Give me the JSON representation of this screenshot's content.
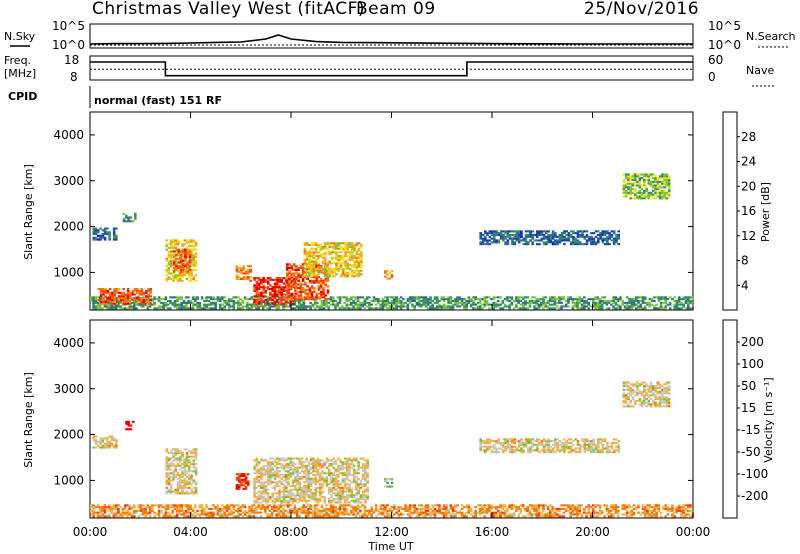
{
  "header": {
    "site": "Christmas Valley West (fitACF)",
    "beam": "Beam 09",
    "date": "25/Nov/2016",
    "cpid_label": "CPID",
    "cpid_value": "normal (fast) 151 RF"
  },
  "chart_data": [
    {
      "type": "line",
      "name": "N.Sky / N.Search strip",
      "left_label": "N.Sky",
      "right_label": "N.Search",
      "left_ticks": [
        "10^5",
        "10^0"
      ],
      "right_ticks": [
        "10^5",
        "10^0"
      ],
      "x": [
        "00:00",
        "01:00",
        "02:00",
        "03:00",
        "04:00",
        "05:00",
        "06:00",
        "07:00",
        "07:30",
        "08:00",
        "09:00",
        "10:00",
        "12:00",
        "14:00",
        "16:00",
        "18:00",
        "20:00",
        "22:00",
        "24:00"
      ],
      "series": [
        {
          "name": "N.Sky",
          "values": [
            0.1,
            0.12,
            0.12,
            0.13,
            0.15,
            0.18,
            0.2,
            0.35,
            0.55,
            0.35,
            0.22,
            0.18,
            0.16,
            0.14,
            0.12,
            0.11,
            0.1,
            0.1,
            0.1
          ]
        },
        {
          "name": "N.Search",
          "values": [
            0.05,
            0.05,
            0.05,
            0.05,
            0.05,
            0.05,
            0.05,
            0.05,
            0.05,
            0.05,
            0.05,
            0.05,
            0.05,
            0.05,
            0.05,
            0.05,
            0.05,
            0.05,
            0.05
          ]
        }
      ]
    },
    {
      "type": "line",
      "name": "Frequency / Nave strip",
      "left_label": "Freq.\n[MHz]",
      "right_label": "Nave",
      "left_ticks": [
        "18",
        "8"
      ],
      "right_ticks": [
        "60",
        "0"
      ],
      "series": [
        {
          "name": "Freq",
          "steps": [
            [
              0,
              15.5
            ],
            [
              3.0,
              15.5
            ],
            [
              3.0,
              9.8
            ],
            [
              15.0,
              9.8
            ],
            [
              15.0,
              15.5
            ],
            [
              24,
              15.5
            ]
          ]
        },
        {
          "name": "Nave",
          "steps": [
            [
              0,
              0.45
            ],
            [
              3.0,
              0.45
            ],
            [
              3.0,
              0.45
            ],
            [
              15.0,
              0.45
            ],
            [
              15.0,
              0.45
            ],
            [
              24,
              0.45
            ]
          ]
        }
      ]
    },
    {
      "type": "heatmap",
      "name": "Power",
      "ylabel": "Slant Range [km]",
      "y_ticks": [
        "1000",
        "2000",
        "3000",
        "4000"
      ],
      "y_range": [
        180,
        4500
      ],
      "x_range": [
        0,
        24
      ],
      "colorbar_label": "Power [dB]",
      "colorbar_ticks": [
        "4",
        "8",
        "12",
        "16",
        "20",
        "24",
        "28"
      ],
      "colorbar_colors": [
        "#0000ff",
        "#1c3fb0",
        "#2d6f8a",
        "#3a8f5e",
        "#7bc241",
        "#f0e020",
        "#f0b020",
        "#f47a1a",
        "#f04010",
        "#e00000"
      ],
      "regions": [
        {
          "t0": 0.0,
          "t1": 24.0,
          "r0": 200,
          "r1": 450,
          "v": 0.35
        },
        {
          "t0": 0.1,
          "t1": 1.0,
          "r0": 1700,
          "r1": 1950,
          "v": 0.2
        },
        {
          "t0": 1.3,
          "t1": 1.8,
          "r0": 2100,
          "r1": 2300,
          "v": 0.3
        },
        {
          "t0": 0.3,
          "t1": 2.4,
          "r0": 300,
          "r1": 650,
          "v": 0.85
        },
        {
          "t0": 3.0,
          "t1": 4.2,
          "r0": 800,
          "r1": 1700,
          "v": 0.6
        },
        {
          "t0": 3.3,
          "t1": 4.0,
          "r0": 1000,
          "r1": 1500,
          "v": 0.85
        },
        {
          "t0": 5.8,
          "t1": 6.4,
          "r0": 800,
          "r1": 1150,
          "v": 0.8
        },
        {
          "t0": 6.5,
          "t1": 8.2,
          "r0": 300,
          "r1": 900,
          "v": 0.95
        },
        {
          "t0": 7.8,
          "t1": 9.5,
          "r0": 400,
          "r1": 1200,
          "v": 0.85
        },
        {
          "t0": 8.5,
          "t1": 10.8,
          "r0": 900,
          "r1": 1650,
          "v": 0.6
        },
        {
          "t0": 11.7,
          "t1": 12.0,
          "r0": 850,
          "r1": 1050,
          "v": 0.7
        },
        {
          "t0": 21.2,
          "t1": 23.0,
          "r0": 2600,
          "r1": 3150,
          "v": 0.45
        },
        {
          "t0": 15.5,
          "t1": 21.0,
          "r0": 1600,
          "r1": 1900,
          "v": 0.2
        }
      ]
    },
    {
      "type": "heatmap",
      "name": "Velocity",
      "ylabel": "Slant Range [km]",
      "y_ticks": [
        "1000",
        "2000",
        "3000",
        "4000"
      ],
      "y_range": [
        180,
        4500
      ],
      "x_range": [
        0,
        24
      ],
      "xlabel": "Time UT",
      "x_ticks": [
        "00:00",
        "04:00",
        "08:00",
        "12:00",
        "16:00",
        "20:00",
        "00:00"
      ],
      "colorbar_label": "Velocity [m s⁻¹]",
      "colorbar_ticks": [
        "-200",
        "-100",
        "-50",
        "-15",
        "15",
        "50",
        "100",
        "200"
      ],
      "colorbar_colors": [
        "#e00000",
        "#f04010",
        "#f07a10",
        "#f0b040",
        "#c8c8c0",
        "#7bc241",
        "#3a8f5e",
        "#2d6f8a",
        "#1c3fb0"
      ],
      "regions": [
        {
          "t0": 0.0,
          "t1": 24.0,
          "r0": 200,
          "r1": 450,
          "v": 0.3
        },
        {
          "t0": 0.1,
          "t1": 1.0,
          "r0": 1700,
          "r1": 1950,
          "v": 0.45
        },
        {
          "t0": 1.4,
          "t1": 1.7,
          "r0": 2100,
          "r1": 2300,
          "v": 0.0
        },
        {
          "t0": 3.0,
          "t1": 4.2,
          "r0": 700,
          "r1": 1700,
          "v": 0.45
        },
        {
          "t0": 5.8,
          "t1": 6.3,
          "r0": 800,
          "r1": 1150,
          "v": 0.05
        },
        {
          "t0": 6.5,
          "t1": 11.0,
          "r0": 500,
          "r1": 1500,
          "v": 0.45
        },
        {
          "t0": 11.7,
          "t1": 12.0,
          "r0": 850,
          "r1": 1050,
          "v": 0.6
        },
        {
          "t0": 21.2,
          "t1": 23.0,
          "r0": 2600,
          "r1": 3150,
          "v": 0.45
        },
        {
          "t0": 15.5,
          "t1": 21.0,
          "r0": 1600,
          "r1": 1900,
          "v": 0.45
        }
      ]
    }
  ]
}
